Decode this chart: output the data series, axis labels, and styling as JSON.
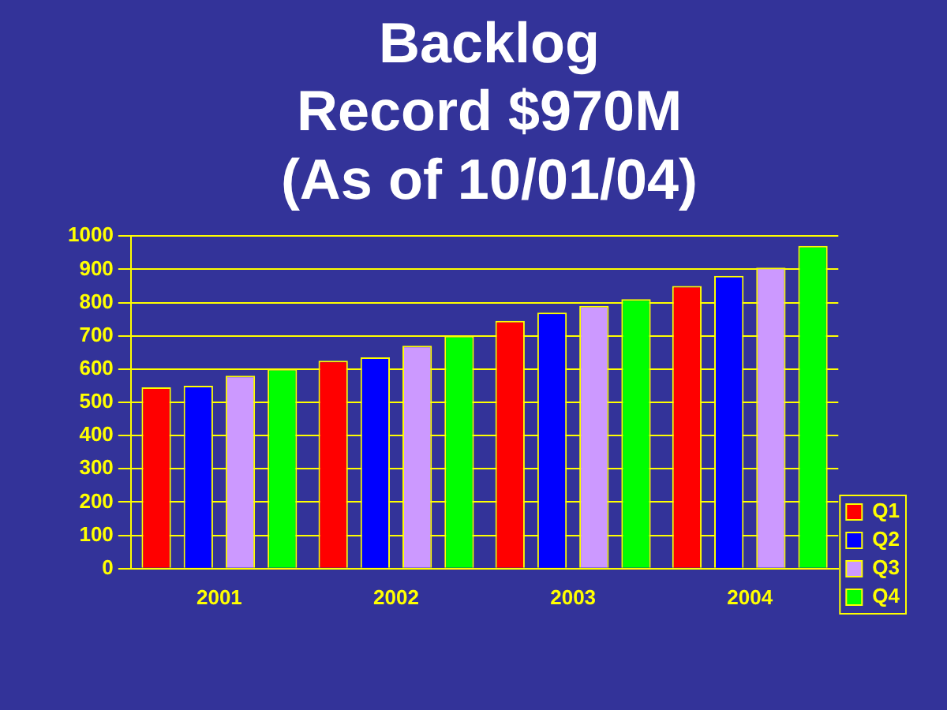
{
  "chart_data": {
    "type": "bar",
    "title": [
      "Backlog",
      "Record $970M",
      "(As of 10/01/04)"
    ],
    "categories": [
      "2001",
      "2002",
      "2003",
      "2004"
    ],
    "series": [
      {
        "name": "Q1",
        "color": "#ff0000",
        "values": [
          545,
          625,
          745,
          850
        ]
      },
      {
        "name": "Q2",
        "color": "#0000ff",
        "values": [
          550,
          635,
          770,
          880
        ]
      },
      {
        "name": "Q3",
        "color": "#cc99ff",
        "values": [
          580,
          670,
          790,
          905
        ]
      },
      {
        "name": "Q4",
        "color": "#00ff00",
        "values": [
          600,
          700,
          810,
          970
        ]
      }
    ],
    "ylim": [
      0,
      1000
    ],
    "yticks": [
      0,
      100,
      200,
      300,
      400,
      500,
      600,
      700,
      800,
      900,
      1000
    ],
    "grid": "y",
    "legend": "bottom right"
  }
}
